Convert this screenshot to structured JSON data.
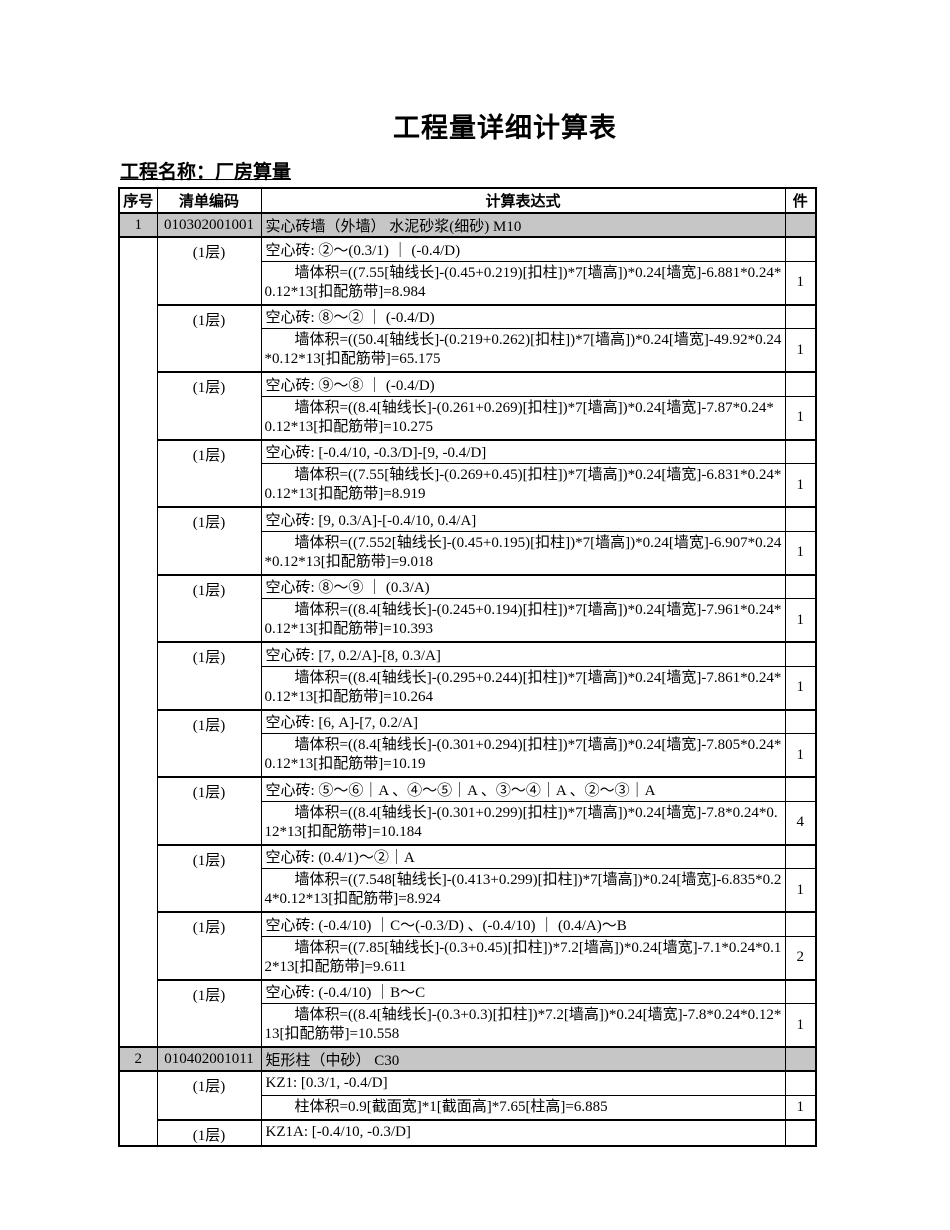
{
  "page": {
    "title": "工程量详细计算表",
    "project_label": "工程名称：厂房算量"
  },
  "colors": {
    "section_row_bg": "#c6c6c6",
    "border": "#000000",
    "text": "#000000"
  },
  "table": {
    "headers": {
      "no": "序号",
      "code": "清单编码",
      "expression": "计算表达式",
      "count": "件"
    },
    "sections": [
      {
        "no": "1",
        "code": "010302001001",
        "name": "实心砖墙（外墙） 水泥砂浆(细砂) M10",
        "groups": [
          {
            "floor": "(1层)",
            "label": "空心砖: ②～(0.3/1) ｜ (-0.4/D)",
            "calc": "墙体积=((7.55[轴线长]-(0.45+0.219)[扣柱])*7[墙高])*0.24[墙宽]-6.881*0.24*0.12*13[扣配筋带]=8.984",
            "count": "1"
          },
          {
            "floor": "(1层)",
            "label": "空心砖: ⑧～② ｜ (-0.4/D)",
            "calc": "墙体积=((50.4[轴线长]-(0.219+0.262)[扣柱])*7[墙高])*0.24[墙宽]-49.92*0.24*0.12*13[扣配筋带]=65.175",
            "count": "1"
          },
          {
            "floor": "(1层)",
            "label": "空心砖: ⑨～⑧ ｜ (-0.4/D)",
            "calc": "墙体积=((8.4[轴线长]-(0.261+0.269)[扣柱])*7[墙高])*0.24[墙宽]-7.87*0.24*0.12*13[扣配筋带]=10.275",
            "count": "1"
          },
          {
            "floor": "(1层)",
            "label": "空心砖: [-0.4/10, -0.3/D]-[9, -0.4/D]",
            "calc": "墙体积=((7.55[轴线长]-(0.269+0.45)[扣柱])*7[墙高])*0.24[墙宽]-6.831*0.24*0.12*13[扣配筋带]=8.919",
            "count": "1"
          },
          {
            "floor": "(1层)",
            "label": "空心砖: [9, 0.3/A]-[-0.4/10, 0.4/A]",
            "calc": "墙体积=((7.552[轴线长]-(0.45+0.195)[扣柱])*7[墙高])*0.24[墙宽]-6.907*0.24*0.12*13[扣配筋带]=9.018",
            "count": "1"
          },
          {
            "floor": "(1层)",
            "label": "空心砖: ⑧～⑨ ｜ (0.3/A)",
            "calc": "墙体积=((8.4[轴线长]-(0.245+0.194)[扣柱])*7[墙高])*0.24[墙宽]-7.961*0.24*0.12*13[扣配筋带]=10.393",
            "count": "1"
          },
          {
            "floor": "(1层)",
            "label": "空心砖: [7, 0.2/A]-[8, 0.3/A]",
            "calc": "墙体积=((8.4[轴线长]-(0.295+0.244)[扣柱])*7[墙高])*0.24[墙宽]-7.861*0.24*0.12*13[扣配筋带]=10.264",
            "count": "1"
          },
          {
            "floor": "(1层)",
            "label": "空心砖: [6, A]-[7, 0.2/A]",
            "calc": "墙体积=((8.4[轴线长]-(0.301+0.294)[扣柱])*7[墙高])*0.24[墙宽]-7.805*0.24*0.12*13[扣配筋带]=10.19",
            "count": "1"
          },
          {
            "floor": "(1层)",
            "label": "空心砖: ⑤～⑥｜A 、④～⑤｜A 、③～④｜A 、②～③｜A",
            "calc": "墙体积=((8.4[轴线长]-(0.301+0.299)[扣柱])*7[墙高])*0.24[墙宽]-7.8*0.24*0.12*13[扣配筋带]=10.184",
            "count": "4"
          },
          {
            "floor": "(1层)",
            "label": "空心砖: (0.4/1)～②｜A",
            "calc": "墙体积=((7.548[轴线长]-(0.413+0.299)[扣柱])*7[墙高])*0.24[墙宽]-6.835*0.24*0.12*13[扣配筋带]=8.924",
            "count": "1"
          },
          {
            "floor": "(1层)",
            "label": "空心砖: (-0.4/10) ｜C～(-0.3/D) 、(-0.4/10) ｜ (0.4/A)～B",
            "calc": "墙体积=((7.85[轴线长]-(0.3+0.45)[扣柱])*7.2[墙高])*0.24[墙宽]-7.1*0.24*0.12*13[扣配筋带]=9.611",
            "count": "2"
          },
          {
            "floor": "(1层)",
            "label": "空心砖: (-0.4/10) ｜B～C",
            "calc": "墙体积=((8.4[轴线长]-(0.3+0.3)[扣柱])*7.2[墙高])*0.24[墙宽]-7.8*0.24*0.12*13[扣配筋带]=10.558",
            "count": "1"
          }
        ]
      },
      {
        "no": "2",
        "code": "010402001011",
        "name": "矩形柱（中砂） C30",
        "groups": [
          {
            "floor": "(1层)",
            "label": "KZ1: [0.3/1, -0.4/D]",
            "calc": "柱体积=0.9[截面宽]*1[截面高]*7.65[柱高]=6.885",
            "count": "1",
            "single_line": true
          },
          {
            "floor": "(1层)",
            "label": "KZ1A: [-0.4/10, -0.3/D]",
            "calc": null,
            "count": null
          }
        ]
      }
    ]
  }
}
